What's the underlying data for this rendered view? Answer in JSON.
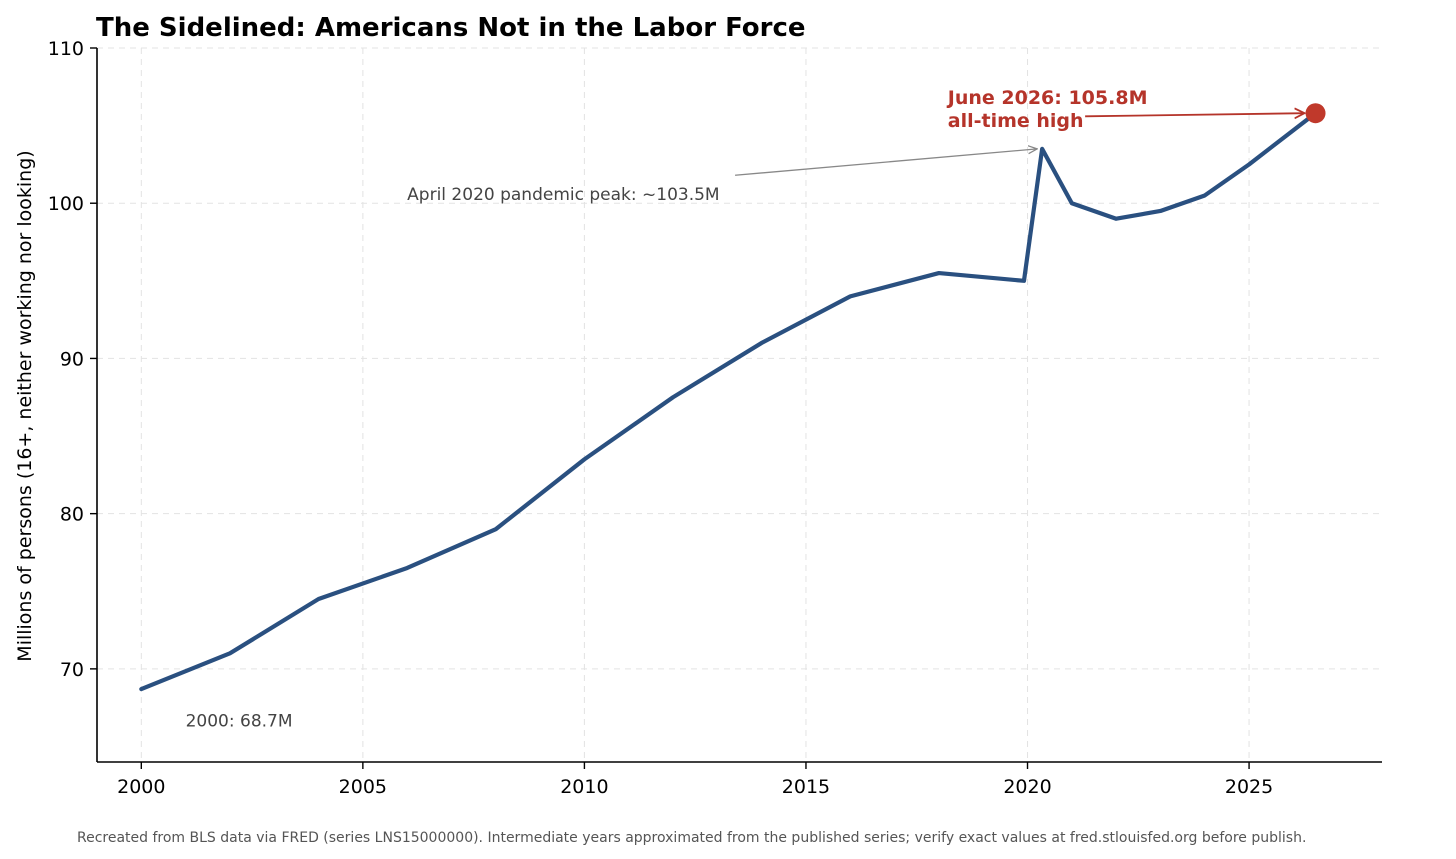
{
  "chart_data": {
    "type": "line",
    "title": "The Sidelined: Americans Not in the Labor Force",
    "xlabel": "",
    "ylabel": "Millions of persons (16+, neither working nor looking)",
    "xlim": [
      1999,
      2028
    ],
    "ylim": [
      64,
      110
    ],
    "xticks": [
      2000,
      2005,
      2010,
      2015,
      2020,
      2025
    ],
    "yticks": [
      70,
      80,
      90,
      100,
      110
    ],
    "grid": true,
    "legend": "none",
    "series": [
      {
        "color": "#2a5080",
        "points": [
          {
            "x": 2000,
            "y": 68.7
          },
          {
            "x": 2002,
            "y": 71.0
          },
          {
            "x": 2004,
            "y": 74.5
          },
          {
            "x": 2006,
            "y": 76.5
          },
          {
            "x": 2008,
            "y": 79.0
          },
          {
            "x": 2010,
            "y": 83.5
          },
          {
            "x": 2012,
            "y": 87.5
          },
          {
            "x": 2014,
            "y": 91.0
          },
          {
            "x": 2016,
            "y": 94.0
          },
          {
            "x": 2018,
            "y": 95.5
          },
          {
            "x": 2019.92,
            "y": 95.0
          },
          {
            "x": 2020.33,
            "y": 103.5
          },
          {
            "x": 2021,
            "y": 100.0
          },
          {
            "x": 2022,
            "y": 99.0
          },
          {
            "x": 2023,
            "y": 99.5
          },
          {
            "x": 2024,
            "y": 100.5
          },
          {
            "x": 2025,
            "y": 102.5
          },
          {
            "x": 2026.5,
            "y": 105.8
          }
        ]
      }
    ],
    "highlight_point": {
      "x": 2026.5,
      "y": 105.8,
      "color": "#c0392b"
    },
    "annotations": {
      "latest": {
        "line1": "June 2026: 105.8M",
        "line2": "all-time high",
        "text_x": 2018.2,
        "text_y": 106.4,
        "arrow_from_x": 2021.3,
        "arrow_from_y": 105.6,
        "color": "#b5342a"
      },
      "pandemic": {
        "text": "April 2020 pandemic peak: ~103.5M",
        "text_x": 2006,
        "text_y": 100.2,
        "arrow_from_x": 2013.4,
        "arrow_from_y": 101.8,
        "target_x": 2020.33,
        "target_y": 103.5,
        "color": "#888888"
      },
      "start": {
        "text": "2000: 68.7M",
        "text_x": 2001,
        "text_y": 66.3
      }
    },
    "footnote": "Recreated from BLS data via FRED (series LNS15000000). Intermediate years approximated from the published series; verify exact values at fred.stlouisfed.org before publish."
  }
}
